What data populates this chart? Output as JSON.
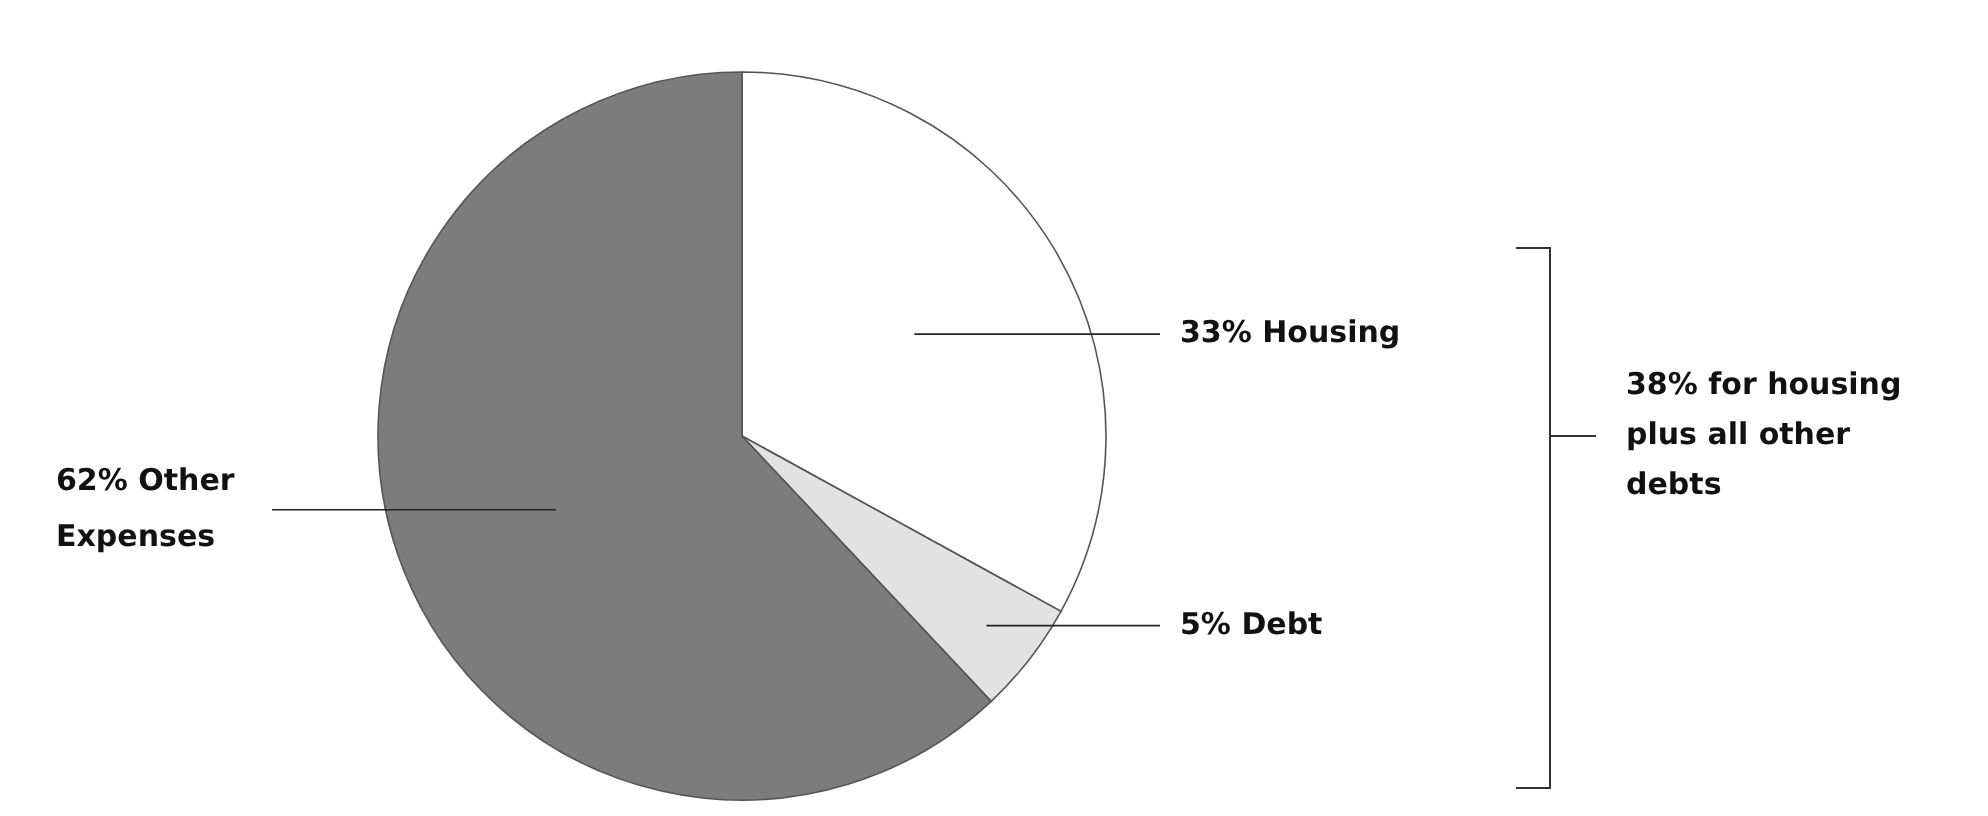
{
  "chart_data": {
    "type": "pie",
    "categories": [
      "Housing",
      "Debt",
      "Other Expenses"
    ],
    "values": [
      33,
      5,
      62
    ],
    "colors": [
      "#ffffff",
      "#e2e2e2",
      "#7c7c7c"
    ],
    "value_labels": [
      "33%",
      "5%",
      "62%"
    ],
    "annotations": [
      "38% for housing plus all other debts"
    ]
  }
}
